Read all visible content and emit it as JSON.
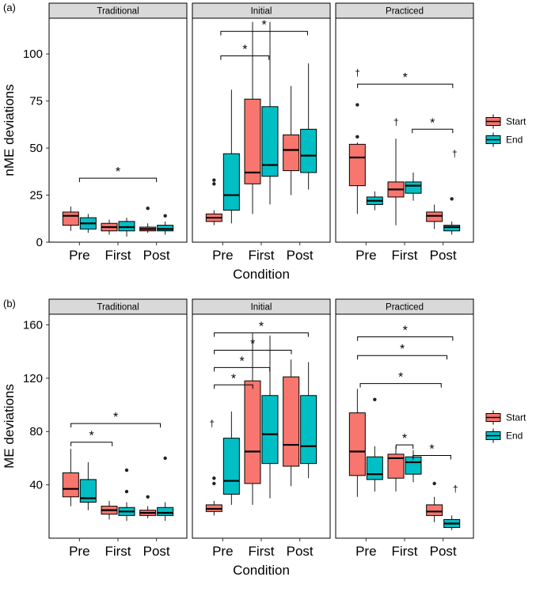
{
  "colors": {
    "start": "#F8766D",
    "end": "#00BFC4",
    "strip_bg": "#D9D9D9",
    "outline": "#000000"
  },
  "chart_data": [
    {
      "type": "boxplot",
      "panel_tag": "(a)",
      "xlabel": "Condition",
      "ylabel": "nME deviations",
      "ylim": [
        0,
        119
      ],
      "yticks": [
        0,
        25,
        50,
        75,
        100
      ],
      "categories": [
        "Pre",
        "First",
        "Post"
      ],
      "series_names": [
        "Start",
        "End"
      ],
      "legend": {
        "position": "right",
        "items": [
          "Start",
          "End"
        ]
      },
      "facets": [
        {
          "label": "Traditional",
          "boxes": [
            {
              "cond": "Pre",
              "series": "Start",
              "lo": 6,
              "q1": 9,
              "med": 14,
              "q3": 16,
              "hi": 19,
              "out": []
            },
            {
              "cond": "Pre",
              "series": "End",
              "lo": 5,
              "q1": 7,
              "med": 10,
              "q3": 13,
              "hi": 15,
              "out": []
            },
            {
              "cond": "First",
              "series": "Start",
              "lo": 4,
              "q1": 6,
              "med": 8,
              "q3": 10,
              "hi": 12,
              "out": []
            },
            {
              "cond": "First",
              "series": "End",
              "lo": 3,
              "q1": 6,
              "med": 8,
              "q3": 11,
              "hi": 13,
              "out": []
            },
            {
              "cond": "Post",
              "series": "Start",
              "lo": 5,
              "q1": 6,
              "med": 7,
              "q3": 8,
              "hi": 10,
              "out": [
                18
              ]
            },
            {
              "cond": "Post",
              "series": "End",
              "lo": 4,
              "q1": 6,
              "med": 7,
              "q3": 9,
              "hi": 11,
              "out": [
                14
              ]
            }
          ],
          "brackets": [
            {
              "x1": 1.0,
              "x2": 3.0,
              "y": 34,
              "label": "*"
            }
          ],
          "marks": []
        },
        {
          "label": "Initial",
          "boxes": [
            {
              "cond": "Pre",
              "series": "Start",
              "lo": 9,
              "q1": 11,
              "med": 13,
              "q3": 15,
              "hi": 17,
              "out": [
                31,
                33
              ]
            },
            {
              "cond": "Pre",
              "series": "End",
              "lo": 10,
              "q1": 17,
              "med": 25,
              "q3": 47,
              "hi": 81,
              "out": []
            },
            {
              "cond": "First",
              "series": "Start",
              "lo": 15,
              "q1": 31,
              "med": 37,
              "q3": 76,
              "hi": 117,
              "out": []
            },
            {
              "cond": "First",
              "series": "End",
              "lo": 20,
              "q1": 35,
              "med": 41,
              "q3": 72,
              "hi": 117,
              "out": []
            },
            {
              "cond": "Post",
              "series": "Start",
              "lo": 25,
              "q1": 38,
              "med": 49,
              "q3": 57,
              "hi": 83,
              "out": []
            },
            {
              "cond": "Post",
              "series": "End",
              "lo": 28,
              "q1": 37,
              "med": 46,
              "q3": 60,
              "hi": 95,
              "out": []
            }
          ],
          "brackets": [
            {
              "x1": 0.95,
              "x2": 2.2,
              "y": 99,
              "label": "*"
            },
            {
              "x1": 0.95,
              "x2": 3.2,
              "y": 112,
              "label": "*"
            }
          ],
          "marks": []
        },
        {
          "label": "Practiced",
          "boxes": [
            {
              "cond": "Pre",
              "series": "Start",
              "lo": 15,
              "q1": 30,
              "med": 45,
              "q3": 52,
              "hi": 53,
              "out": [
                56,
                73
              ]
            },
            {
              "cond": "Pre",
              "series": "End",
              "lo": 17,
              "q1": 20,
              "med": 22,
              "q3": 24,
              "hi": 27,
              "out": []
            },
            {
              "cond": "First",
              "series": "Start",
              "lo": 9,
              "q1": 24,
              "med": 28,
              "q3": 32,
              "hi": 55,
              "out": []
            },
            {
              "cond": "First",
              "series": "End",
              "lo": 22,
              "q1": 26,
              "med": 30,
              "q3": 32,
              "hi": 37,
              "out": []
            },
            {
              "cond": "Post",
              "series": "Start",
              "lo": 7,
              "q1": 11,
              "med": 14,
              "q3": 16,
              "hi": 20,
              "out": []
            },
            {
              "cond": "Post",
              "series": "End",
              "lo": 4,
              "q1": 6,
              "med": 8,
              "q3": 9,
              "hi": 11,
              "out": [
                23
              ]
            }
          ],
          "brackets": [
            {
              "x1": 0.78,
              "x2": 3.25,
              "y": 84,
              "label": "*"
            },
            {
              "x1": 2.2,
              "x2": 3.25,
              "y": 60,
              "label": "*"
            }
          ],
          "marks": [
            {
              "x": 0.78,
              "y": 90,
              "t": "†"
            },
            {
              "x": 1.78,
              "y": 64,
              "t": "†"
            },
            {
              "x": 3.3,
              "y": 47,
              "t": "†"
            }
          ]
        }
      ]
    },
    {
      "type": "boxplot",
      "panel_tag": "(b)",
      "xlabel": "Condition",
      "ylabel": "ME deviations",
      "ylim": [
        0,
        168
      ],
      "yticks": [
        40,
        80,
        120,
        160
      ],
      "categories": [
        "Pre",
        "First",
        "Post"
      ],
      "series_names": [
        "Start",
        "End"
      ],
      "legend": {
        "position": "right",
        "items": [
          "Start",
          "End"
        ]
      },
      "facets": [
        {
          "label": "Traditional",
          "boxes": [
            {
              "cond": "Pre",
              "series": "Start",
              "lo": 24,
              "q1": 31,
              "med": 37,
              "q3": 49,
              "hi": 67,
              "out": []
            },
            {
              "cond": "Pre",
              "series": "End",
              "lo": 21,
              "q1": 27,
              "med": 30,
              "q3": 44,
              "hi": 57,
              "out": []
            },
            {
              "cond": "First",
              "series": "Start",
              "lo": 14,
              "q1": 18,
              "med": 21,
              "q3": 24,
              "hi": 28,
              "out": []
            },
            {
              "cond": "First",
              "series": "End",
              "lo": 13,
              "q1": 17,
              "med": 20,
              "q3": 23,
              "hi": 27,
              "out": [
                35,
                51
              ]
            },
            {
              "cond": "Post",
              "series": "Start",
              "lo": 15,
              "q1": 17,
              "med": 19,
              "q3": 21,
              "hi": 24,
              "out": [
                31
              ]
            },
            {
              "cond": "Post",
              "series": "End",
              "lo": 13,
              "q1": 17,
              "med": 19,
              "q3": 23,
              "hi": 27,
              "out": [
                60
              ]
            }
          ],
          "brackets": [
            {
              "x1": 0.78,
              "x2": 1.85,
              "y": 72,
              "label": "*"
            },
            {
              "x1": 0.78,
              "x2": 3.1,
              "y": 86,
              "label": "*"
            }
          ],
          "marks": []
        },
        {
          "label": "Initial",
          "boxes": [
            {
              "cond": "Pre",
              "series": "Start",
              "lo": 17,
              "q1": 20,
              "med": 22,
              "q3": 25,
              "hi": 28,
              "out": [
                41,
                45
              ]
            },
            {
              "cond": "Pre",
              "series": "End",
              "lo": 25,
              "q1": 33,
              "med": 43,
              "q3": 75,
              "hi": 95,
              "out": []
            },
            {
              "cond": "First",
              "series": "Start",
              "lo": 25,
              "q1": 41,
              "med": 65,
              "q3": 118,
              "hi": 154,
              "out": []
            },
            {
              "cond": "First",
              "series": "End",
              "lo": 30,
              "q1": 56,
              "med": 78,
              "q3": 107,
              "hi": 152,
              "out": []
            },
            {
              "cond": "Post",
              "series": "Start",
              "lo": 39,
              "q1": 54,
              "med": 70,
              "q3": 121,
              "hi": 134,
              "out": []
            },
            {
              "cond": "Post",
              "series": "End",
              "lo": 45,
              "q1": 56,
              "med": 69,
              "q3": 107,
              "hi": 132,
              "out": []
            }
          ],
          "brackets": [
            {
              "x1": 0.78,
              "x2": 1.78,
              "y": 115,
              "label": "*"
            },
            {
              "x1": 0.78,
              "x2": 2.22,
              "y": 128,
              "label": "*"
            },
            {
              "x1": 0.78,
              "x2": 2.78,
              "y": 141,
              "label": "*"
            },
            {
              "x1": 0.78,
              "x2": 3.22,
              "y": 154,
              "label": "*"
            }
          ],
          "marks": [
            {
              "x": 0.72,
              "y": 86,
              "t": "†"
            }
          ]
        },
        {
          "label": "Practiced",
          "boxes": [
            {
              "cond": "Pre",
              "series": "Start",
              "lo": 31,
              "q1": 47,
              "med": 65,
              "q3": 94,
              "hi": 112,
              "out": []
            },
            {
              "cond": "Pre",
              "series": "End",
              "lo": 35,
              "q1": 44,
              "med": 48,
              "q3": 61,
              "hi": 69,
              "out": [
                104
              ]
            },
            {
              "cond": "First",
              "series": "Start",
              "lo": 35,
              "q1": 45,
              "med": 60,
              "q3": 63,
              "hi": 69,
              "out": []
            },
            {
              "cond": "First",
              "series": "End",
              "lo": 42,
              "q1": 48,
              "med": 57,
              "q3": 61,
              "hi": 66,
              "out": []
            },
            {
              "cond": "Post",
              "series": "Start",
              "lo": 12,
              "q1": 17,
              "med": 20,
              "q3": 25,
              "hi": 31,
              "out": [
                41
              ]
            },
            {
              "cond": "Post",
              "series": "End",
              "lo": 6,
              "q1": 8,
              "med": 11,
              "q3": 14,
              "hi": 17,
              "out": []
            }
          ],
          "brackets": [
            {
              "x1": 0.78,
              "x2": 3.25,
              "y": 151,
              "label": "*"
            },
            {
              "x1": 0.78,
              "x2": 3.1,
              "y": 137,
              "label": "*"
            },
            {
              "x1": 0.85,
              "x2": 2.95,
              "y": 116,
              "label": "*"
            },
            {
              "x1": 1.78,
              "x2": 2.22,
              "y": 70,
              "label": "*"
            },
            {
              "x1": 2.22,
              "x2": 3.2,
              "y": 62,
              "label": "*"
            }
          ],
          "marks": [
            {
              "x": 3.32,
              "y": 37,
              "t": "†"
            }
          ]
        }
      ]
    }
  ]
}
